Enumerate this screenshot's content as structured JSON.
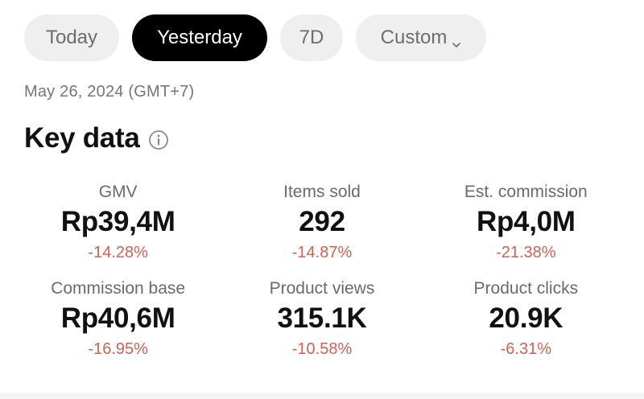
{
  "tabs": [
    {
      "label": "Today",
      "active": false
    },
    {
      "label": "Yesterday",
      "active": true
    },
    {
      "label": "7D",
      "active": false
    },
    {
      "label": "Custom",
      "active": false,
      "icon": "chevron-down-icon"
    }
  ],
  "date_label": "May 26, 2024 (GMT+7)",
  "key_data": {
    "title": "Key data",
    "info_icon": "info-icon",
    "metrics": [
      {
        "label": "GMV",
        "value": "Rp39,4M",
        "change": "-14.28%"
      },
      {
        "label": "Items sold",
        "value": "292",
        "change": "-14.87%"
      },
      {
        "label": "Est. commission",
        "value": "Rp4,0M",
        "change": "-21.38%"
      },
      {
        "label": "Commission base",
        "value": "Rp40,6M",
        "change": "-16.95%"
      },
      {
        "label": "Product views",
        "value": "315.1K",
        "change": "-10.58%"
      },
      {
        "label": "Product clicks",
        "value": "20.9K",
        "change": "-6.31%"
      }
    ]
  },
  "colors": {
    "active_tab_bg": "#000000",
    "inactive_tab_bg": "#efefef",
    "negative_change": "#d4604f"
  }
}
